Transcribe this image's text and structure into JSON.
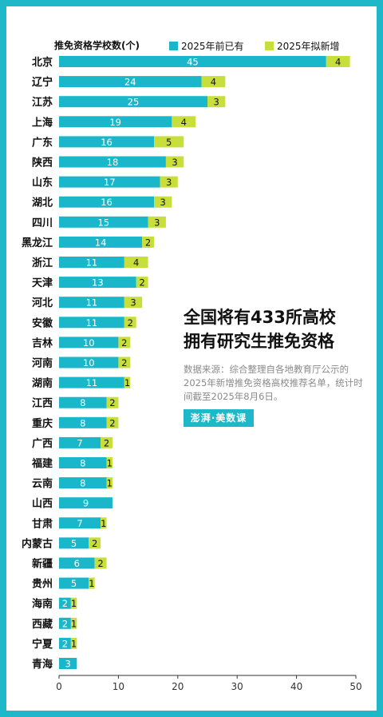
{
  "chart_data": {
    "type": "bar",
    "stacked": true,
    "orientation": "horizontal",
    "title": "推免资格学校数(个)",
    "categories": [
      "北京",
      "辽宁",
      "江苏",
      "上海",
      "广东",
      "陕西",
      "山东",
      "湖北",
      "四川",
      "黑龙江",
      "浙江",
      "天津",
      "河北",
      "安徽",
      "吉林",
      "河南",
      "湖南",
      "江西",
      "重庆",
      "广西",
      "福建",
      "云南",
      "山西",
      "甘肃",
      "内蒙古",
      "新疆",
      "贵州",
      "海南",
      "西藏",
      "宁夏",
      "青海"
    ],
    "series": [
      {
        "name": "2025年前已有",
        "color": "#1ab7cb",
        "values": [
          45,
          24,
          25,
          19,
          16,
          18,
          17,
          16,
          15,
          14,
          11,
          13,
          11,
          11,
          10,
          10,
          11,
          8,
          8,
          7,
          8,
          8,
          9,
          7,
          5,
          6,
          5,
          2,
          2,
          2,
          3
        ]
      },
      {
        "name": "2025年拟新增",
        "color": "#c8df3b",
        "values": [
          4,
          4,
          3,
          4,
          5,
          3,
          3,
          3,
          3,
          2,
          4,
          2,
          3,
          2,
          2,
          2,
          1,
          2,
          2,
          2,
          1,
          1,
          0,
          1,
          2,
          2,
          1,
          1,
          1,
          1,
          0
        ]
      }
    ],
    "xlim": [
      0,
      50
    ],
    "xticks": [
      0,
      10,
      20,
      30,
      40,
      50
    ],
    "grid": false,
    "legend_position": "top"
  },
  "headline": {
    "line1": "全国将有433所高校",
    "line2": "拥有研究生推免资格"
  },
  "source_note": "数据来源：综合整理自各地教育厅公示的2025年新增推免资格高校推荐名单，统计时间截至2025年8月6日。",
  "logo_text": "澎湃·美数课"
}
